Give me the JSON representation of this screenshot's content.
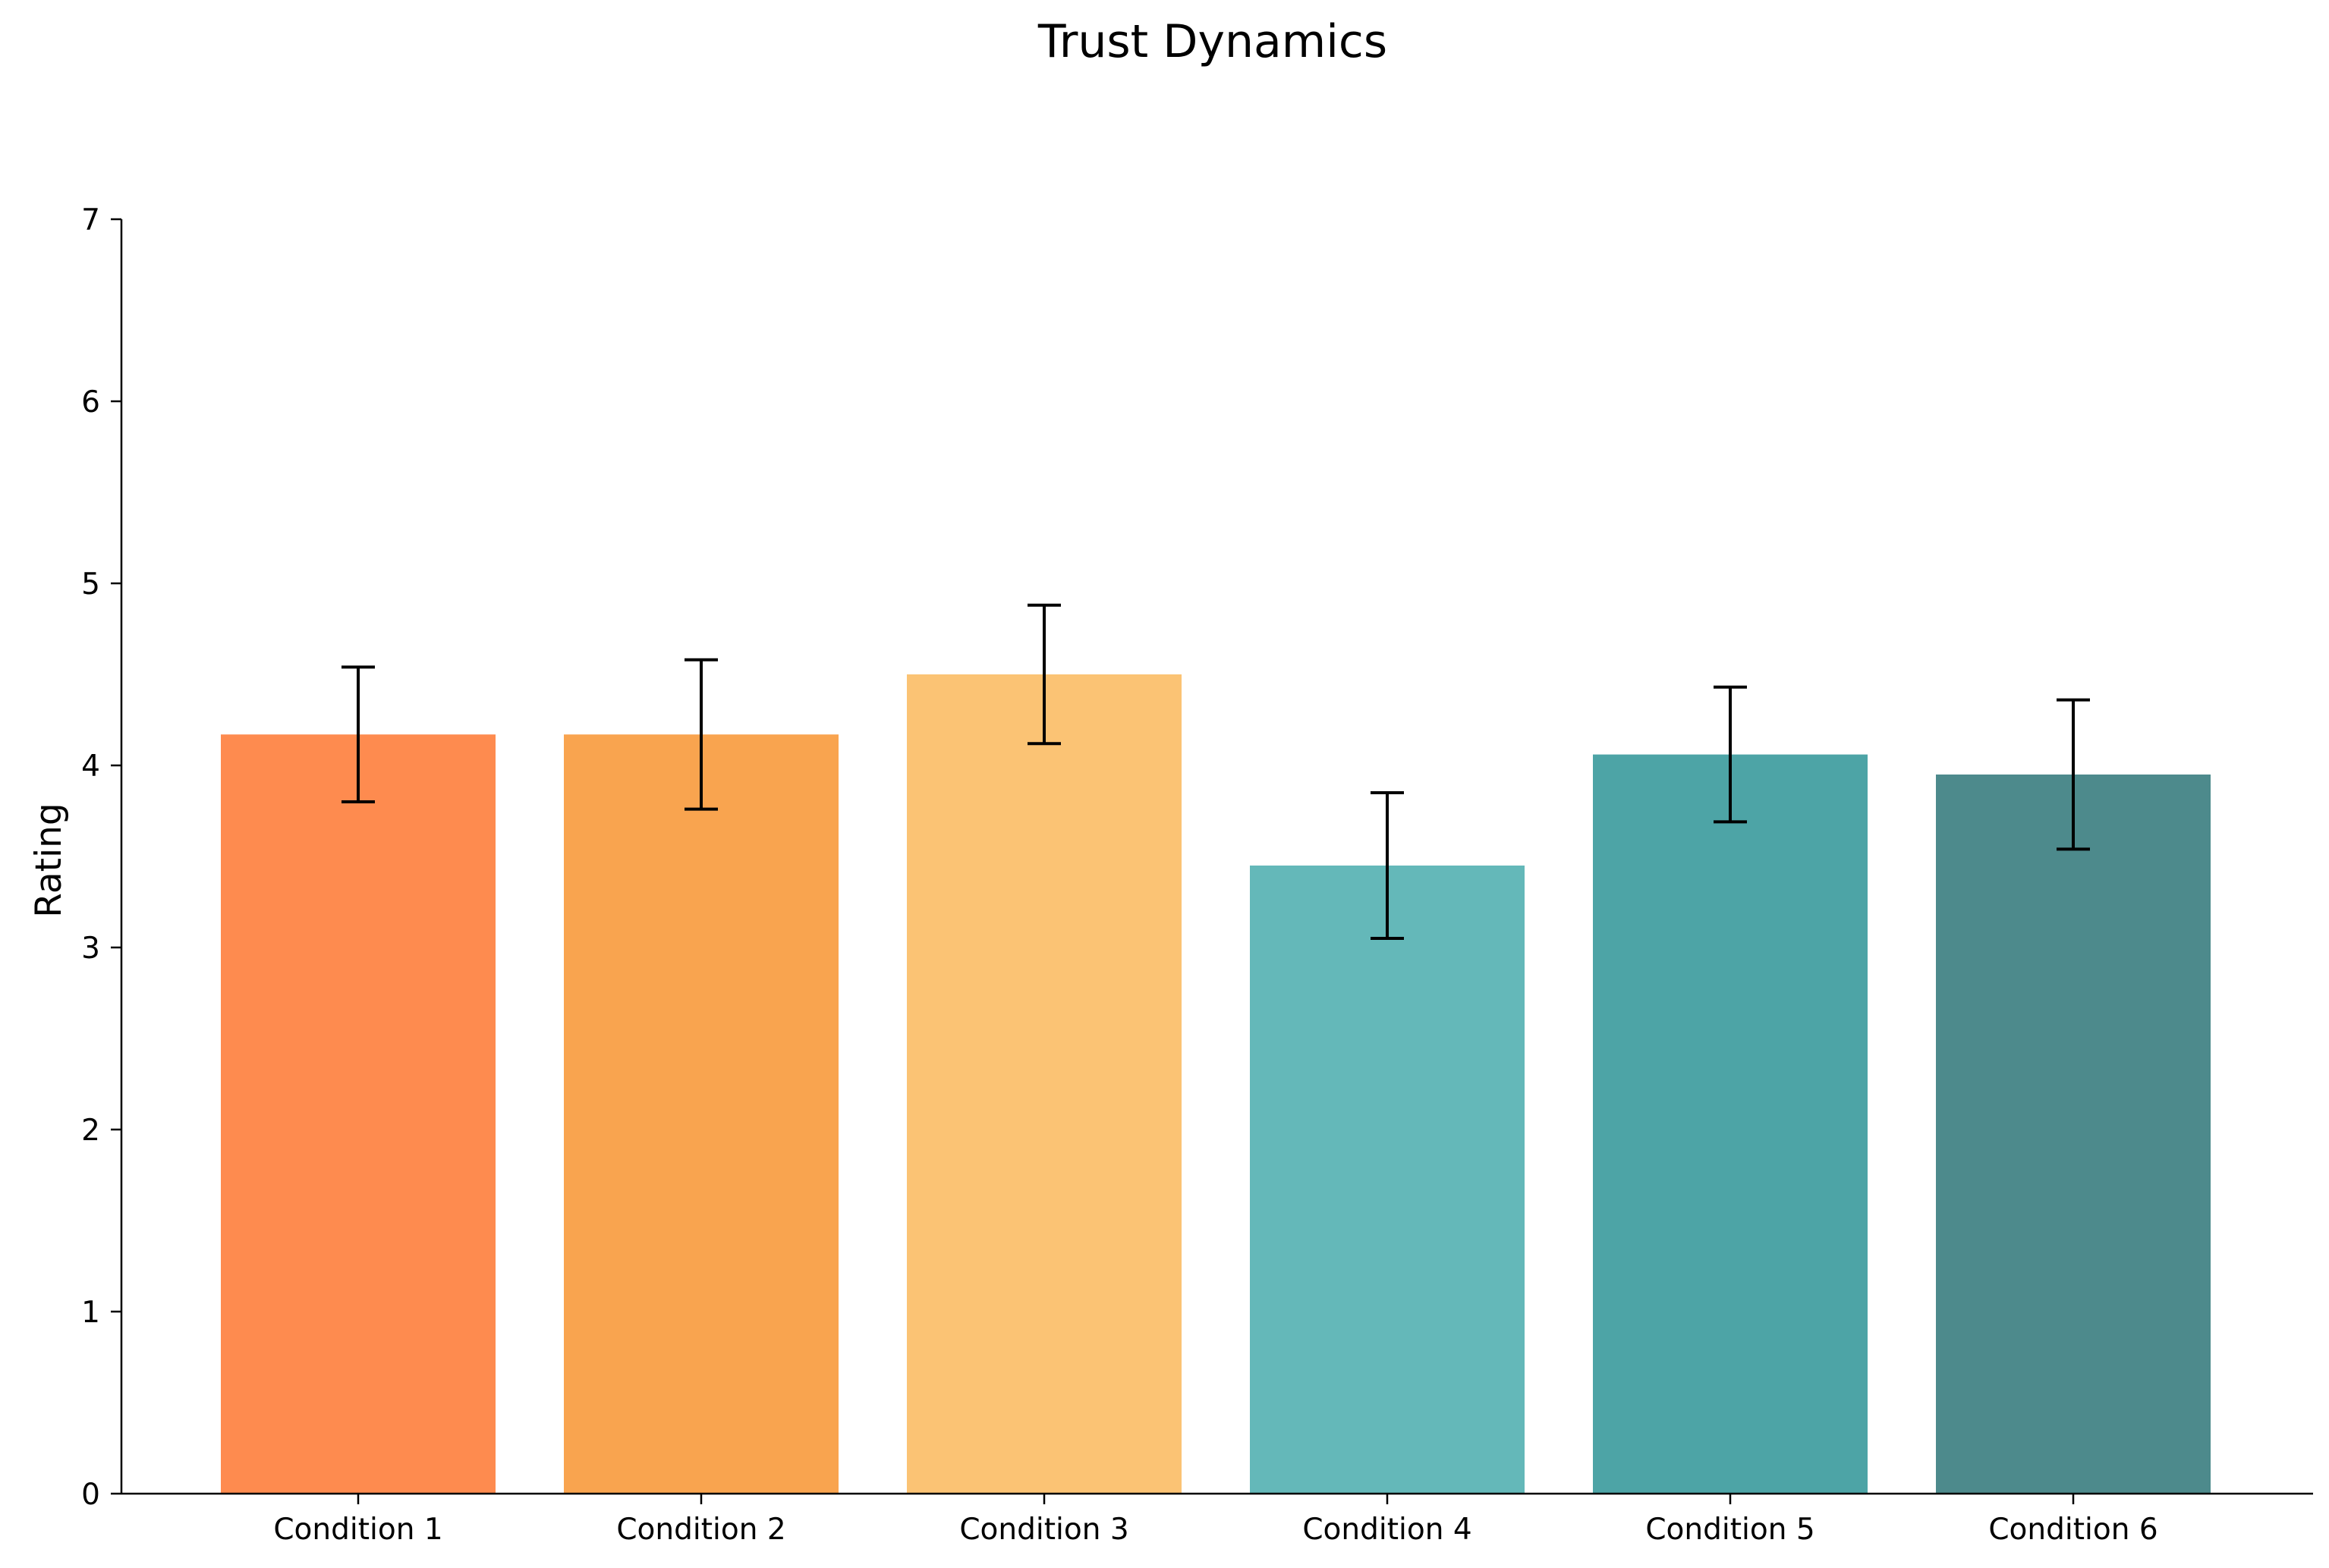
{
  "chart_data": {
    "type": "bar",
    "title": "Trust Dynamics",
    "xlabel": "",
    "ylabel": "Rating",
    "categories": [
      "Condition 1",
      "Condition 2",
      "Condition 3",
      "Condition 4",
      "Condition 5",
      "Condition 6"
    ],
    "values": [
      4.17,
      4.17,
      4.5,
      3.45,
      4.06,
      3.95
    ],
    "errors": [
      0.37,
      0.41,
      0.38,
      0.4,
      0.37,
      0.41
    ],
    "colors": [
      "#FE8B4F",
      "#F9A44F",
      "#FBC374",
      "#64B8B9",
      "#4DA4A6",
      "#4D8A8C"
    ],
    "ylim": [
      0,
      7
    ],
    "yticks": [
      0,
      1,
      2,
      3,
      4,
      5,
      6,
      7
    ],
    "grid": false
  }
}
